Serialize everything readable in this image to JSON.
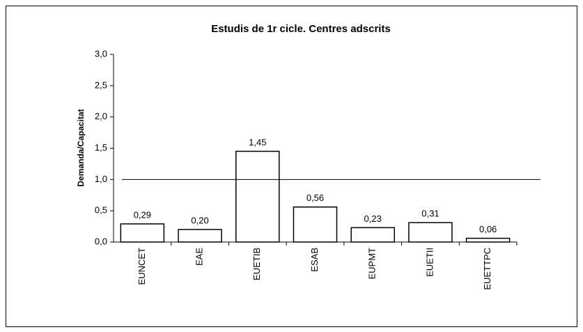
{
  "chart_data": {
    "type": "bar",
    "title": "Estudis de 1r cicle. Centres adscrits",
    "y_label": "Demanda/Capacitat",
    "categories": [
      "EUNCET",
      "EAE",
      "EUETIB",
      "ESAB",
      "EUPMT",
      "EUETII",
      "EUETTPC"
    ],
    "values": [
      0.29,
      0.2,
      1.45,
      0.56,
      0.23,
      0.31,
      0.06
    ],
    "value_labels": [
      "0,29",
      "0,20",
      "1,45",
      "0,56",
      "0,23",
      "0,31",
      "0,06"
    ],
    "color": "#ffffff",
    "ylim": [
      0,
      3
    ],
    "yticks": [
      {
        "value": 0,
        "label": "0,0"
      },
      {
        "value": 0.5,
        "label": "0,5"
      },
      {
        "value": 1,
        "label": "1,0"
      },
      {
        "value": 1.5,
        "label": "1,5"
      },
      {
        "value": 2,
        "label": "2,0"
      },
      {
        "value": 2.5,
        "label": "2,5"
      },
      {
        "value": 3,
        "label": "3,0"
      }
    ],
    "reference_line": 1,
    "grid": false
  }
}
